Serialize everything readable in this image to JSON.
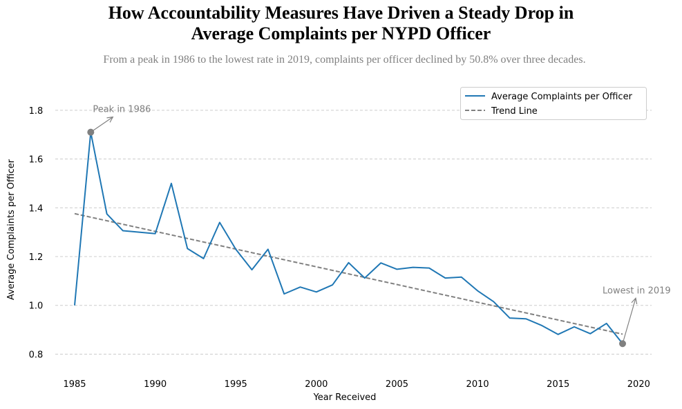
{
  "title_line1": "How Accountability Measures Have Driven a Steady Drop in",
  "title_line2": "Average Complaints per NYPD Officer",
  "subtitle": "From a peak in 1986 to the lowest rate in 2019, complaints per officer declined by 50.8% over three decades.",
  "colors": {
    "series": "#1f77b4",
    "trend": "#808080",
    "annotation": "#808080",
    "grid": "#cccccc"
  },
  "chart_data": {
    "type": "line",
    "xlabel": "Year Received",
    "ylabel": "Average Complaints per Officer",
    "xlim": [
      1983.8,
      2020.8
    ],
    "ylim": [
      0.725,
      1.89
    ],
    "xticks": [
      "1985",
      "1990",
      "1995",
      "2000",
      "2005",
      "2010",
      "2015",
      "2020"
    ],
    "yticks": [
      "0.8",
      "1.0",
      "1.2",
      "1.4",
      "1.6",
      "1.8"
    ],
    "grid": "horizontal dashed",
    "legend_position": "top-right",
    "series": [
      {
        "name": "Average Complaints per Officer",
        "x": [
          1985,
          1986,
          1987,
          1988,
          1989,
          1990,
          1991,
          1992,
          1993,
          1994,
          1995,
          1996,
          1997,
          1998,
          1999,
          2000,
          2001,
          2002,
          2003,
          2004,
          2005,
          2006,
          2007,
          2008,
          2009,
          2010,
          2011,
          2012,
          2013,
          2014,
          2015,
          2016,
          2017,
          2018,
          2019
        ],
        "y": [
          1.0,
          1.71,
          1.375,
          1.306,
          1.3,
          1.294,
          1.5,
          1.233,
          1.192,
          1.34,
          1.23,
          1.146,
          1.23,
          1.047,
          1.075,
          1.055,
          1.084,
          1.175,
          1.112,
          1.174,
          1.148,
          1.156,
          1.153,
          1.112,
          1.116,
          1.06,
          1.015,
          0.948,
          0.945,
          0.917,
          0.881,
          0.912,
          0.884,
          0.926,
          0.843
        ]
      },
      {
        "name": "Trend Line",
        "style": "dashed",
        "x": [
          1985,
          2019
        ],
        "y": [
          1.376,
          0.882
        ]
      }
    ],
    "annotations": [
      {
        "text": "Peak in 1986",
        "x": 1986,
        "y": 1.71
      },
      {
        "text": "Lowest in 2019",
        "x": 2019,
        "y": 0.843
      }
    ]
  }
}
